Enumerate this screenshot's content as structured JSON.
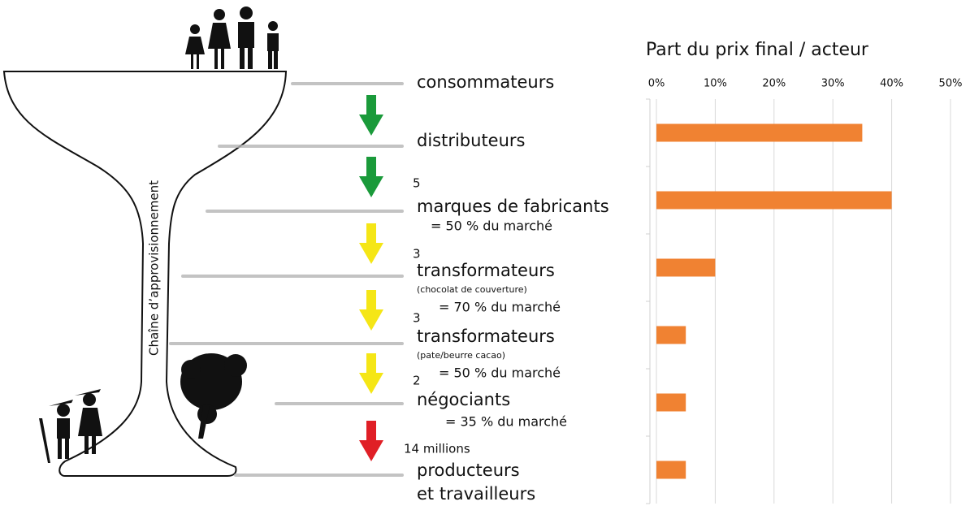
{
  "diagram": {
    "vertical_label": "Chaîne d’approvisionnement",
    "actors": [
      {
        "name": [
          "consommateurs"
        ]
      },
      {
        "name": [
          "distributeurs"
        ]
      },
      {
        "count": "5",
        "name": [
          "marques de fabricants"
        ],
        "share": "= 50 % du marché"
      },
      {
        "count": "3",
        "name": [
          "transformateurs"
        ],
        "detail": "(chocolat de couverture)",
        "share": "= 70 % du marché"
      },
      {
        "count": "3",
        "name": [
          "transformateurs"
        ],
        "detail": "(pate/beurre cacao)",
        "share": "= 50 % du marché"
      },
      {
        "count": "2",
        "name": [
          "négociants"
        ],
        "share": "= 35 % du marché"
      },
      {
        "count": "14 millions",
        "name": [
          "producteurs",
          "et travailleurs"
        ]
      }
    ]
  },
  "chart_data": {
    "type": "bar",
    "orientation": "horizontal",
    "title": "Part du prix final / acteur",
    "values": [
      35,
      40,
      10,
      5,
      5,
      5
    ],
    "color": "#f08232",
    "xlim": [
      0,
      50
    ],
    "xticks": [
      {
        "value": 0,
        "label": "0%"
      },
      {
        "value": 10,
        "label": "10%"
      },
      {
        "value": 20,
        "label": "20%"
      },
      {
        "value": 30,
        "label": "30%"
      },
      {
        "value": 40,
        "label": "40%"
      },
      {
        "value": 50,
        "label": "50%"
      }
    ],
    "grid": true
  }
}
